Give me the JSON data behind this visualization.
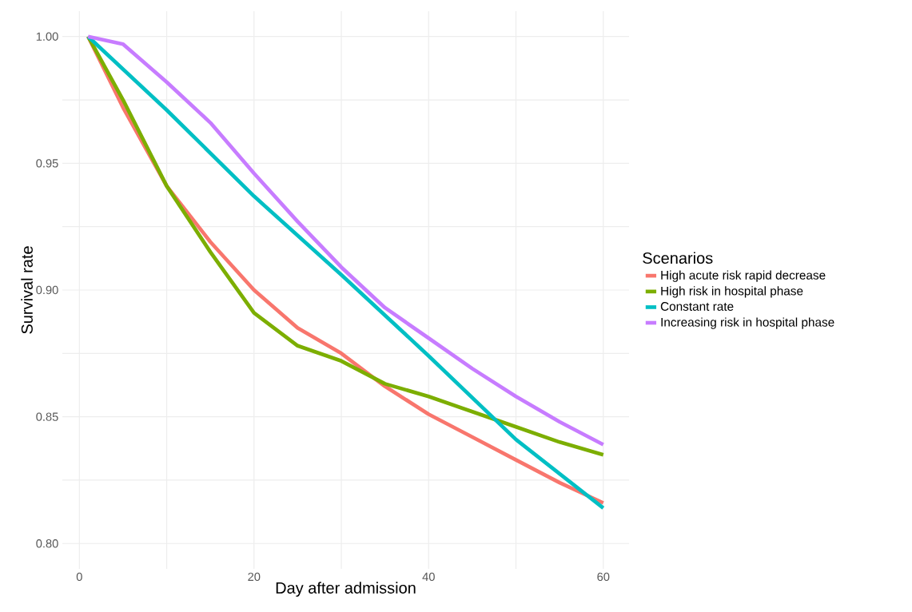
{
  "chart_data": {
    "type": "line",
    "xlabel": "Day after admission",
    "ylabel": "Survival rate",
    "legend_title": "Scenarios",
    "xlim": [
      -1.95,
      62.95
    ],
    "ylim": [
      0.79,
      1.01
    ],
    "xticks": [
      0,
      {
        "value": 10,
        "label": null
      },
      20,
      {
        "value": 30,
        "label": null
      },
      40,
      {
        "value": 50,
        "label": null
      },
      60
    ],
    "yticks": [
      {
        "value": 0.8,
        "label": "0.80"
      },
      {
        "value": 0.825,
        "label": null
      },
      {
        "value": 0.85,
        "label": "0.85"
      },
      {
        "value": 0.875,
        "label": null
      },
      {
        "value": 0.9,
        "label": "0.90"
      },
      {
        "value": 0.925,
        "label": null
      },
      {
        "value": 0.95,
        "label": "0.95"
      },
      {
        "value": 0.975,
        "label": null
      },
      {
        "value": 1.0,
        "label": "1.00"
      }
    ],
    "grid": true,
    "legend": "right",
    "marker": "none",
    "line_style": "solid",
    "x": [
      1,
      5,
      10,
      15,
      20,
      25,
      30,
      35,
      40,
      45,
      50,
      55,
      60
    ],
    "series": [
      {
        "name": "High acute risk rapid decrease",
        "color": "#f8766d",
        "values": [
          1.0,
          0.972,
          0.941,
          0.919,
          0.9,
          0.885,
          0.875,
          0.862,
          0.851,
          0.842,
          0.833,
          0.824,
          0.816
        ]
      },
      {
        "name": "High risk in hospital phase",
        "color": "#7cae00",
        "values": [
          1.0,
          0.975,
          0.941,
          0.915,
          0.891,
          0.878,
          0.872,
          0.863,
          0.858,
          0.852,
          0.846,
          0.84,
          0.835
        ]
      },
      {
        "name": "Constant rate",
        "color": "#00bfc4",
        "values": [
          1.0,
          null,
          0.971,
          null,
          0.937,
          null,
          0.906,
          null,
          0.874,
          null,
          0.841,
          null,
          0.814
        ]
      },
      {
        "name": "Increasing risk in hospital phase",
        "color": "#c77cff",
        "values": [
          1.0,
          0.997,
          0.982,
          0.966,
          0.946,
          0.927,
          0.909,
          0.893,
          0.881,
          0.869,
          0.858,
          0.848,
          0.839
        ]
      }
    ]
  }
}
